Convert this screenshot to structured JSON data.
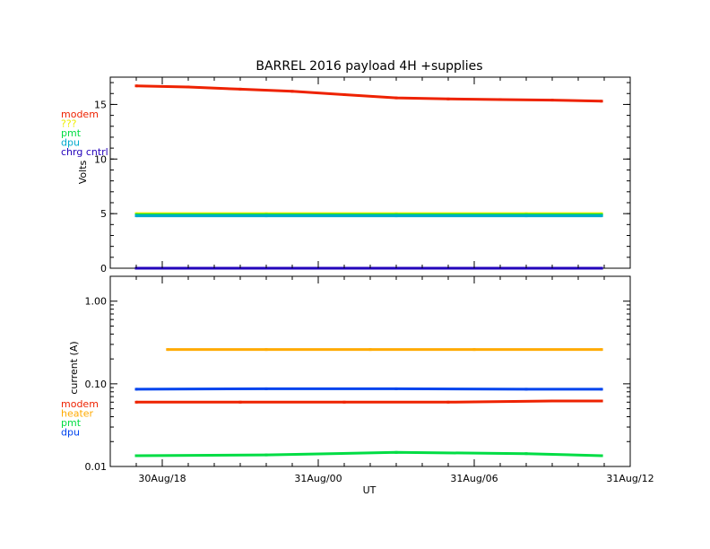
{
  "title": "BARREL 2016 payload 4H +supplies",
  "xlabel": "UT",
  "x_ticks": [
    {
      "t": 0,
      "label": "30Aug/18"
    },
    {
      "t": 6,
      "label": "31Aug/00"
    },
    {
      "t": 12,
      "label": "31Aug/06"
    },
    {
      "t": 18,
      "label": "31Aug/12"
    }
  ],
  "chart_data": [
    {
      "type": "scatter",
      "panel": "top",
      "ylabel": "Volts",
      "ylim": [
        0,
        17.5
      ],
      "y_ticks": [
        {
          "v": 0,
          "label": "0"
        },
        {
          "v": 5,
          "label": "5"
        },
        {
          "v": 10,
          "label": "10"
        },
        {
          "v": 15,
          "label": "15"
        }
      ],
      "xlim_hours_from_30Aug18": [
        -2,
        18
      ],
      "legend": [
        "modem",
        "???",
        "pmt",
        "dpu",
        "chrg cntrl"
      ],
      "legend_position": "left",
      "series": [
        {
          "name": "modem",
          "color": "#ee2200",
          "x": [
            -1,
            1,
            3,
            5,
            7,
            9,
            11,
            13,
            15,
            16.9
          ],
          "values": [
            16.7,
            16.6,
            16.4,
            16.2,
            15.9,
            15.6,
            15.5,
            15.45,
            15.4,
            15.3
          ]
        },
        {
          "name": "???",
          "color": "#eeee00",
          "x": [
            -1,
            4,
            9,
            14,
            16.9
          ],
          "values": [
            5.0,
            5.0,
            5.0,
            5.0,
            5.0
          ]
        },
        {
          "name": "pmt",
          "color": "#00dd44",
          "x": [
            -1,
            4,
            9,
            14,
            16.9
          ],
          "values": [
            4.9,
            4.9,
            4.9,
            4.9,
            4.9
          ]
        },
        {
          "name": "dpu",
          "color": "#00aacc",
          "x": [
            -1,
            4,
            9,
            14,
            16.9
          ],
          "values": [
            4.8,
            4.8,
            4.8,
            4.8,
            4.8
          ]
        },
        {
          "name": "chrg cntrl",
          "color": "#2200bb",
          "x": [
            -1,
            16.9
          ],
          "values": [
            0.0,
            0.0
          ]
        }
      ]
    },
    {
      "type": "scatter",
      "panel": "bottom",
      "ylabel": "current (A)",
      "yscale": "log",
      "ylim": [
        0.01,
        2.0
      ],
      "y_ticks": [
        {
          "v": 0.01,
          "label": "0.01"
        },
        {
          "v": 0.1,
          "label": "0.10"
        },
        {
          "v": 1.0,
          "label": "1.00"
        }
      ],
      "xlim_hours_from_30Aug18": [
        -2,
        18
      ],
      "legend": [
        "modem",
        "heater",
        "pmt",
        "dpu"
      ],
      "legend_position": "left",
      "series": [
        {
          "name": "modem",
          "color": "#ee2200",
          "x": [
            -1,
            3,
            7,
            11,
            15,
            16.9
          ],
          "values": [
            0.06,
            0.06,
            0.06,
            0.06,
            0.062,
            0.062
          ]
        },
        {
          "name": "heater",
          "color": "#ffaa00",
          "x": [
            0.2,
            4,
            8,
            12,
            16.9
          ],
          "values": [
            0.26,
            0.26,
            0.26,
            0.26,
            0.26
          ]
        },
        {
          "name": "pmt",
          "color": "#00dd44",
          "x": [
            -1,
            4,
            9,
            14,
            16.9
          ],
          "values": [
            0.0135,
            0.0138,
            0.0148,
            0.0143,
            0.0135
          ]
        },
        {
          "name": "dpu",
          "color": "#0044ee",
          "x": [
            -1,
            4,
            9,
            14,
            16.9
          ],
          "values": [
            0.086,
            0.087,
            0.087,
            0.086,
            0.086
          ]
        }
      ]
    }
  ]
}
